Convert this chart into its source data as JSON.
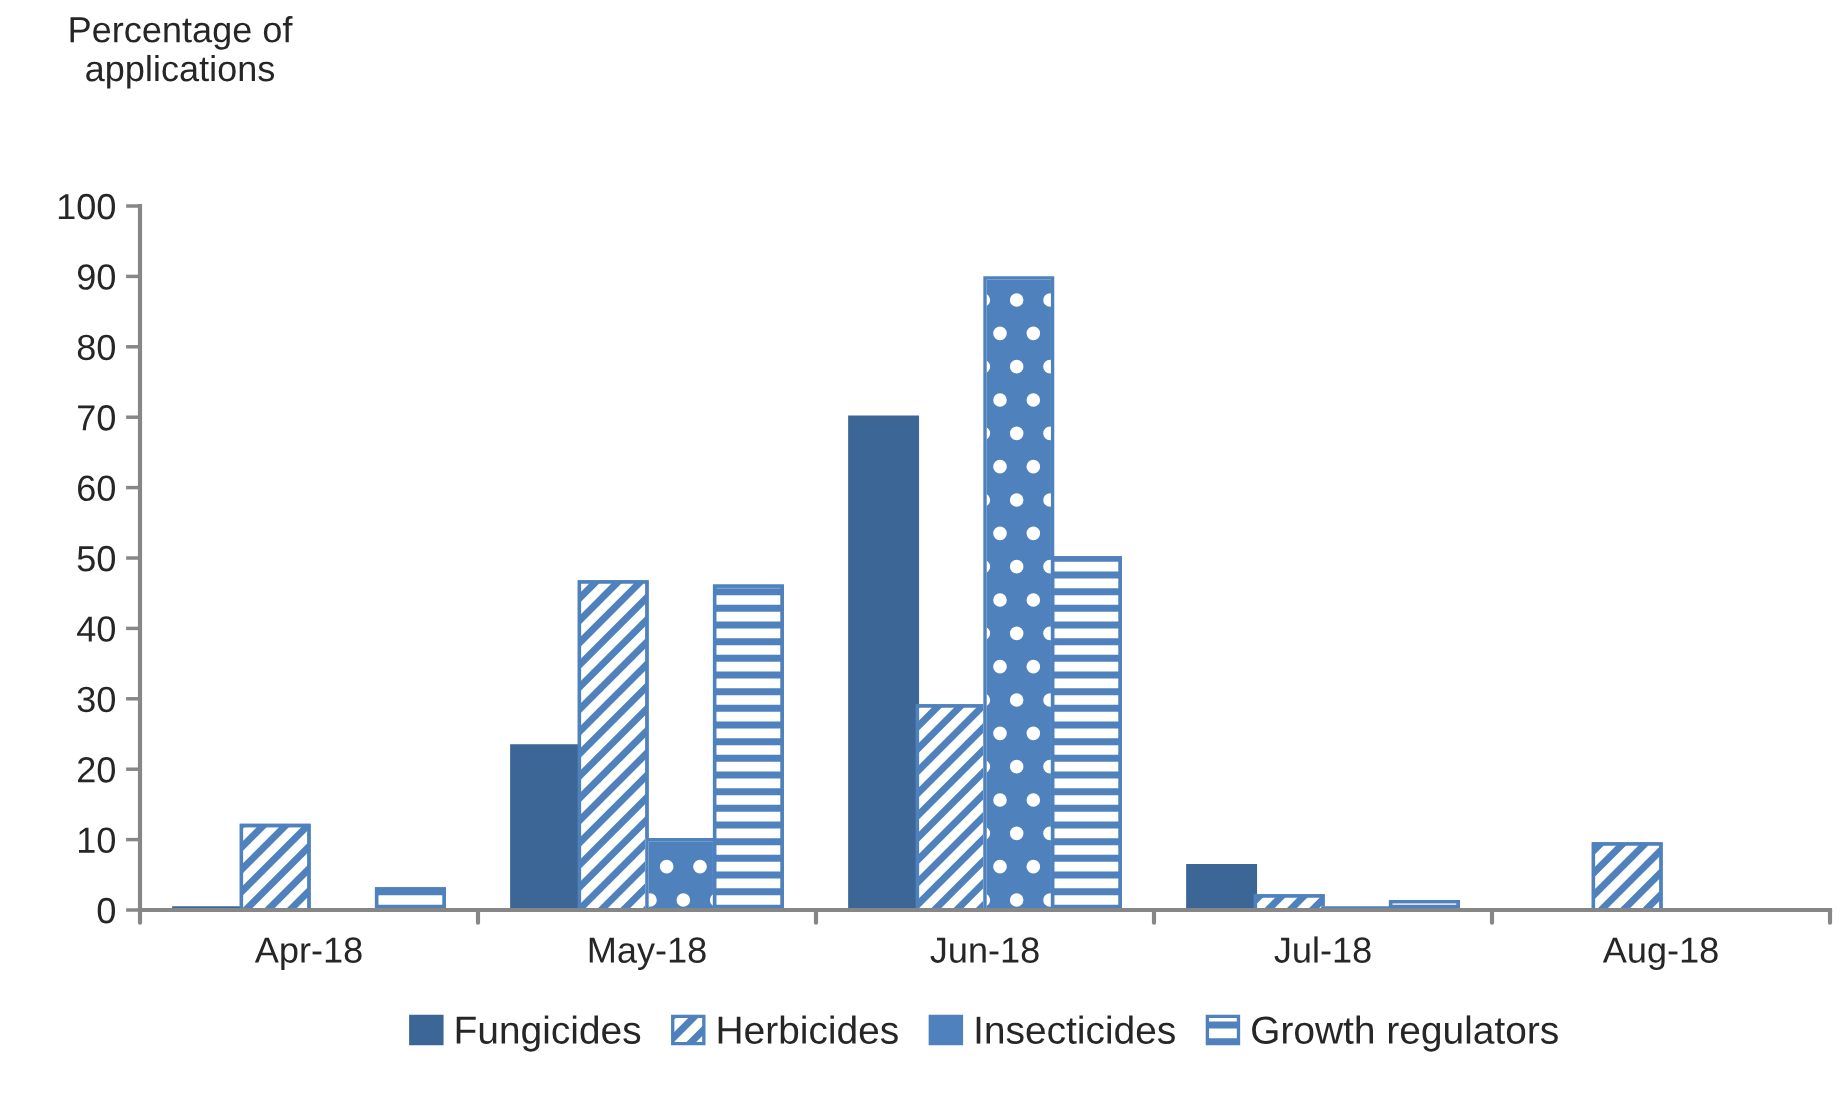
{
  "chart_data": {
    "type": "bar",
    "ylabel": "Percentage of\napplications",
    "categories": [
      "Apr-18",
      "May-18",
      "Jun-18",
      "Jul-18",
      "Aug-18"
    ],
    "series": [
      {
        "name": "Fungicides",
        "color": "#3c6696",
        "values": [
          0.3,
          23.3,
          70,
          6.3,
          0
        ]
      },
      {
        "name": "Herbicides",
        "color": "#4f81bd",
        "values": [
          12,
          46.6,
          29,
          2,
          9.4
        ]
      },
      {
        "name": "Insecticides",
        "color": "#4f81bd",
        "values": [
          0,
          10,
          89.8,
          0.3,
          0
        ]
      },
      {
        "name": "Growth regulators",
        "color": "#4f81bd",
        "values": [
          3,
          46,
          50,
          1.2,
          0
        ]
      }
    ],
    "ylim": [
      0,
      100
    ],
    "yticks": [
      0,
      10,
      20,
      30,
      40,
      50,
      60,
      70,
      80,
      90,
      100
    ],
    "grid": false,
    "legend": "bottom"
  }
}
